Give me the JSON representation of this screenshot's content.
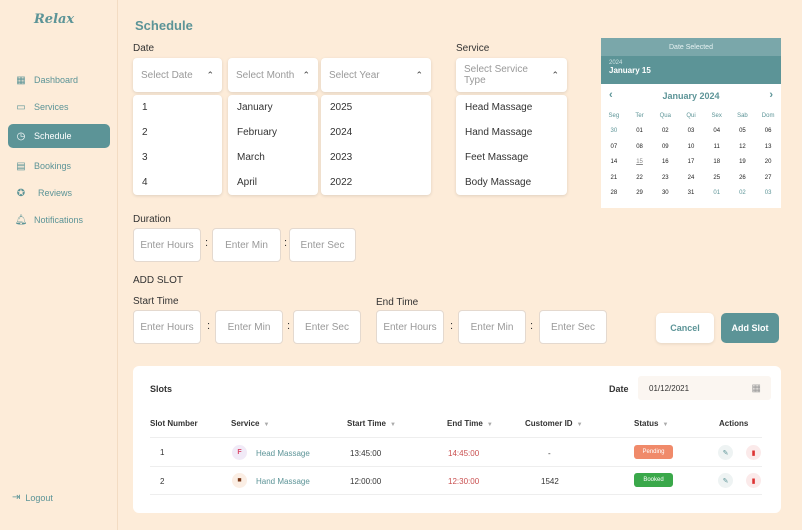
{
  "app": {
    "logo": "Relax"
  },
  "sidebar": {
    "items": [
      {
        "label": "Dashboard",
        "icon": "dashboard-icon"
      },
      {
        "label": "Services",
        "icon": "services-icon"
      },
      {
        "label": "Schedule",
        "icon": "clock-icon",
        "active": true
      },
      {
        "label": "Bookings",
        "icon": "calendar-icon"
      },
      {
        "label": "Reviews",
        "icon": "star-icon"
      },
      {
        "label": "Notifications",
        "icon": "bell-icon"
      }
    ],
    "logout": "Logout"
  },
  "page": {
    "title": "Schedule"
  },
  "date": {
    "label": "Date",
    "day_placeholder": "Select Date",
    "month_placeholder": "Select Month",
    "year_placeholder": "Select Year",
    "days": [
      "1",
      "2",
      "3",
      "4"
    ],
    "months": [
      "January",
      "February",
      "March",
      "April"
    ],
    "years": [
      "2025",
      "2024",
      "2023",
      "2022"
    ]
  },
  "service": {
    "label": "Service",
    "placeholder": "Select Service Type",
    "options": [
      "Head Massage",
      "Hand Massage",
      "Feet Massage",
      "Body Massage"
    ]
  },
  "calendar": {
    "header": "Date Selected",
    "year": "2024",
    "selected": "January 15",
    "month": "January 2024",
    "weekdays": [
      "Seg",
      "Ter",
      "Qua",
      "Qui",
      "Sex",
      "Sab",
      "Dom"
    ],
    "days": [
      "30",
      "01",
      "02",
      "03",
      "04",
      "05",
      "06",
      "07",
      "08",
      "09",
      "10",
      "11",
      "12",
      "13",
      "14",
      "15",
      "16",
      "17",
      "18",
      "19",
      "20",
      "21",
      "22",
      "23",
      "24",
      "25",
      "26",
      "27",
      "28",
      "29",
      "30",
      "31",
      "01",
      "02",
      "03"
    ]
  },
  "duration": {
    "label": "Duration",
    "hours": "Enter Hours",
    "min": "Enter Min",
    "sec": "Enter Sec"
  },
  "add_slot": {
    "heading": "ADD SLOT",
    "start_label": "Start Time",
    "end_label": "End Time",
    "hours": "Enter Hours",
    "min": "Enter Min",
    "sec": "Enter Sec",
    "cancel": "Cancel",
    "add": "Add Slot"
  },
  "slots": {
    "title": "Slots",
    "date_label": "Date",
    "date_value": "01/12/2021",
    "columns": [
      "Slot Number",
      "Service",
      "Start Time",
      "End Time",
      "Customer ID",
      "Status",
      "Actions"
    ],
    "rows": [
      {
        "number": "1",
        "service": "Head Massage",
        "start": "13:45:00",
        "end": "14:45:00",
        "customer": "-",
        "status": "Pending"
      },
      {
        "number": "2",
        "service": "Hand Massage",
        "start": "12:00:00",
        "end": "12:30:00",
        "customer": "1542",
        "status": "Booked"
      }
    ]
  },
  "colors": {
    "accent": "#5c9497",
    "background": "#fdecd9",
    "pending": "#f08a6a",
    "booked": "#3aa84a",
    "end_time": "#c94f4f"
  }
}
